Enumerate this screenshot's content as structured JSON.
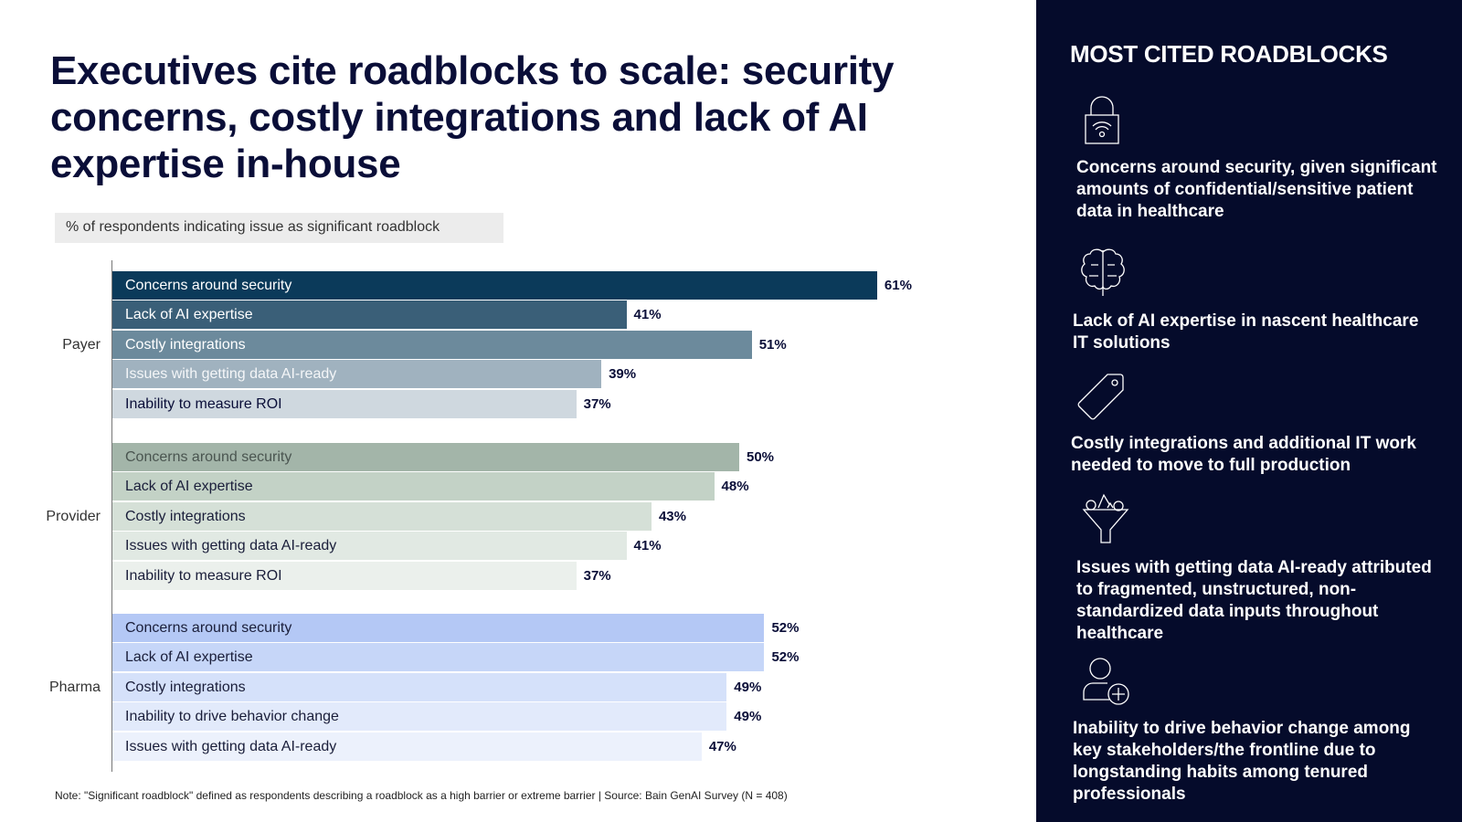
{
  "title": "Executives cite roadblocks to scale: security concerns, costly integrations and lack of AI expertise in-house",
  "subtitle": "% of respondents indicating issue as significant roadblock",
  "note": "Note: \"Significant roadblock\" defined as respondents describing a roadblock as a high barrier or extreme barrier | Source: Bain GenAI Survey (N = 408)",
  "chart_data": {
    "type": "bar",
    "orientation": "horizontal",
    "unit": "%",
    "groups": [
      {
        "name": "Payer",
        "bars": [
          {
            "label": "Concerns around security",
            "value": 61,
            "color": "#0b3a5a"
          },
          {
            "label": "Lack of AI expertise",
            "value": 41,
            "color": "#3a5f78"
          },
          {
            "label": "Costly integrations",
            "value": 51,
            "color": "#6c8a9c"
          },
          {
            "label": "Issues with getting data AI-ready",
            "value": 39,
            "color": "#a0b2bf"
          },
          {
            "label": "Inability to measure ROI",
            "value": 37,
            "color": "#cfd8df"
          }
        ]
      },
      {
        "name": "Provider",
        "bars": [
          {
            "label": "Concerns around security",
            "value": 50,
            "color": "#a3b5a9"
          },
          {
            "label": "Lack of AI expertise",
            "value": 48,
            "color": "#c3d2c6"
          },
          {
            "label": "Costly integrations",
            "value": 43,
            "color": "#d5e0d7"
          },
          {
            "label": "Issues with getting data AI-ready",
            "value": 41,
            "color": "#e1e9e3"
          },
          {
            "label": "Inability to measure ROI",
            "value": 37,
            "color": "#ebf0ec"
          }
        ]
      },
      {
        "name": "Pharma",
        "bars": [
          {
            "label": "Concerns around security",
            "value": 52,
            "color": "#b4c8f5"
          },
          {
            "label": "Lack of AI expertise",
            "value": 52,
            "color": "#c6d6f8"
          },
          {
            "label": "Costly integrations",
            "value": 49,
            "color": "#d5e1fa"
          },
          {
            "label": "Inability to drive behavior change",
            "value": 49,
            "color": "#e2eafb"
          },
          {
            "label": "Issues with getting data AI-ready",
            "value": 47,
            "color": "#ecf1fc"
          }
        ]
      }
    ]
  },
  "panel": {
    "heading": "MOST CITED ROADBLOCKS",
    "items": [
      {
        "icon": "lock-wifi-icon",
        "text": "Concerns around security, given significant amounts of confidential/sensitive patient data in healthcare"
      },
      {
        "icon": "brain-icon",
        "text": "Lack of AI expertise in nascent healthcare IT solutions"
      },
      {
        "icon": "price-tag-icon",
        "text": "Costly integrations and additional IT work needed to move to full production"
      },
      {
        "icon": "funnel-icon",
        "text": "Issues with getting data AI-ready attributed to fragmented, unstructured, non-standardized data inputs throughout healthcare"
      },
      {
        "icon": "user-add-icon",
        "text": "Inability to drive behavior change among key stakeholders/the frontline due to longstanding habits among tenured professionals"
      }
    ]
  }
}
